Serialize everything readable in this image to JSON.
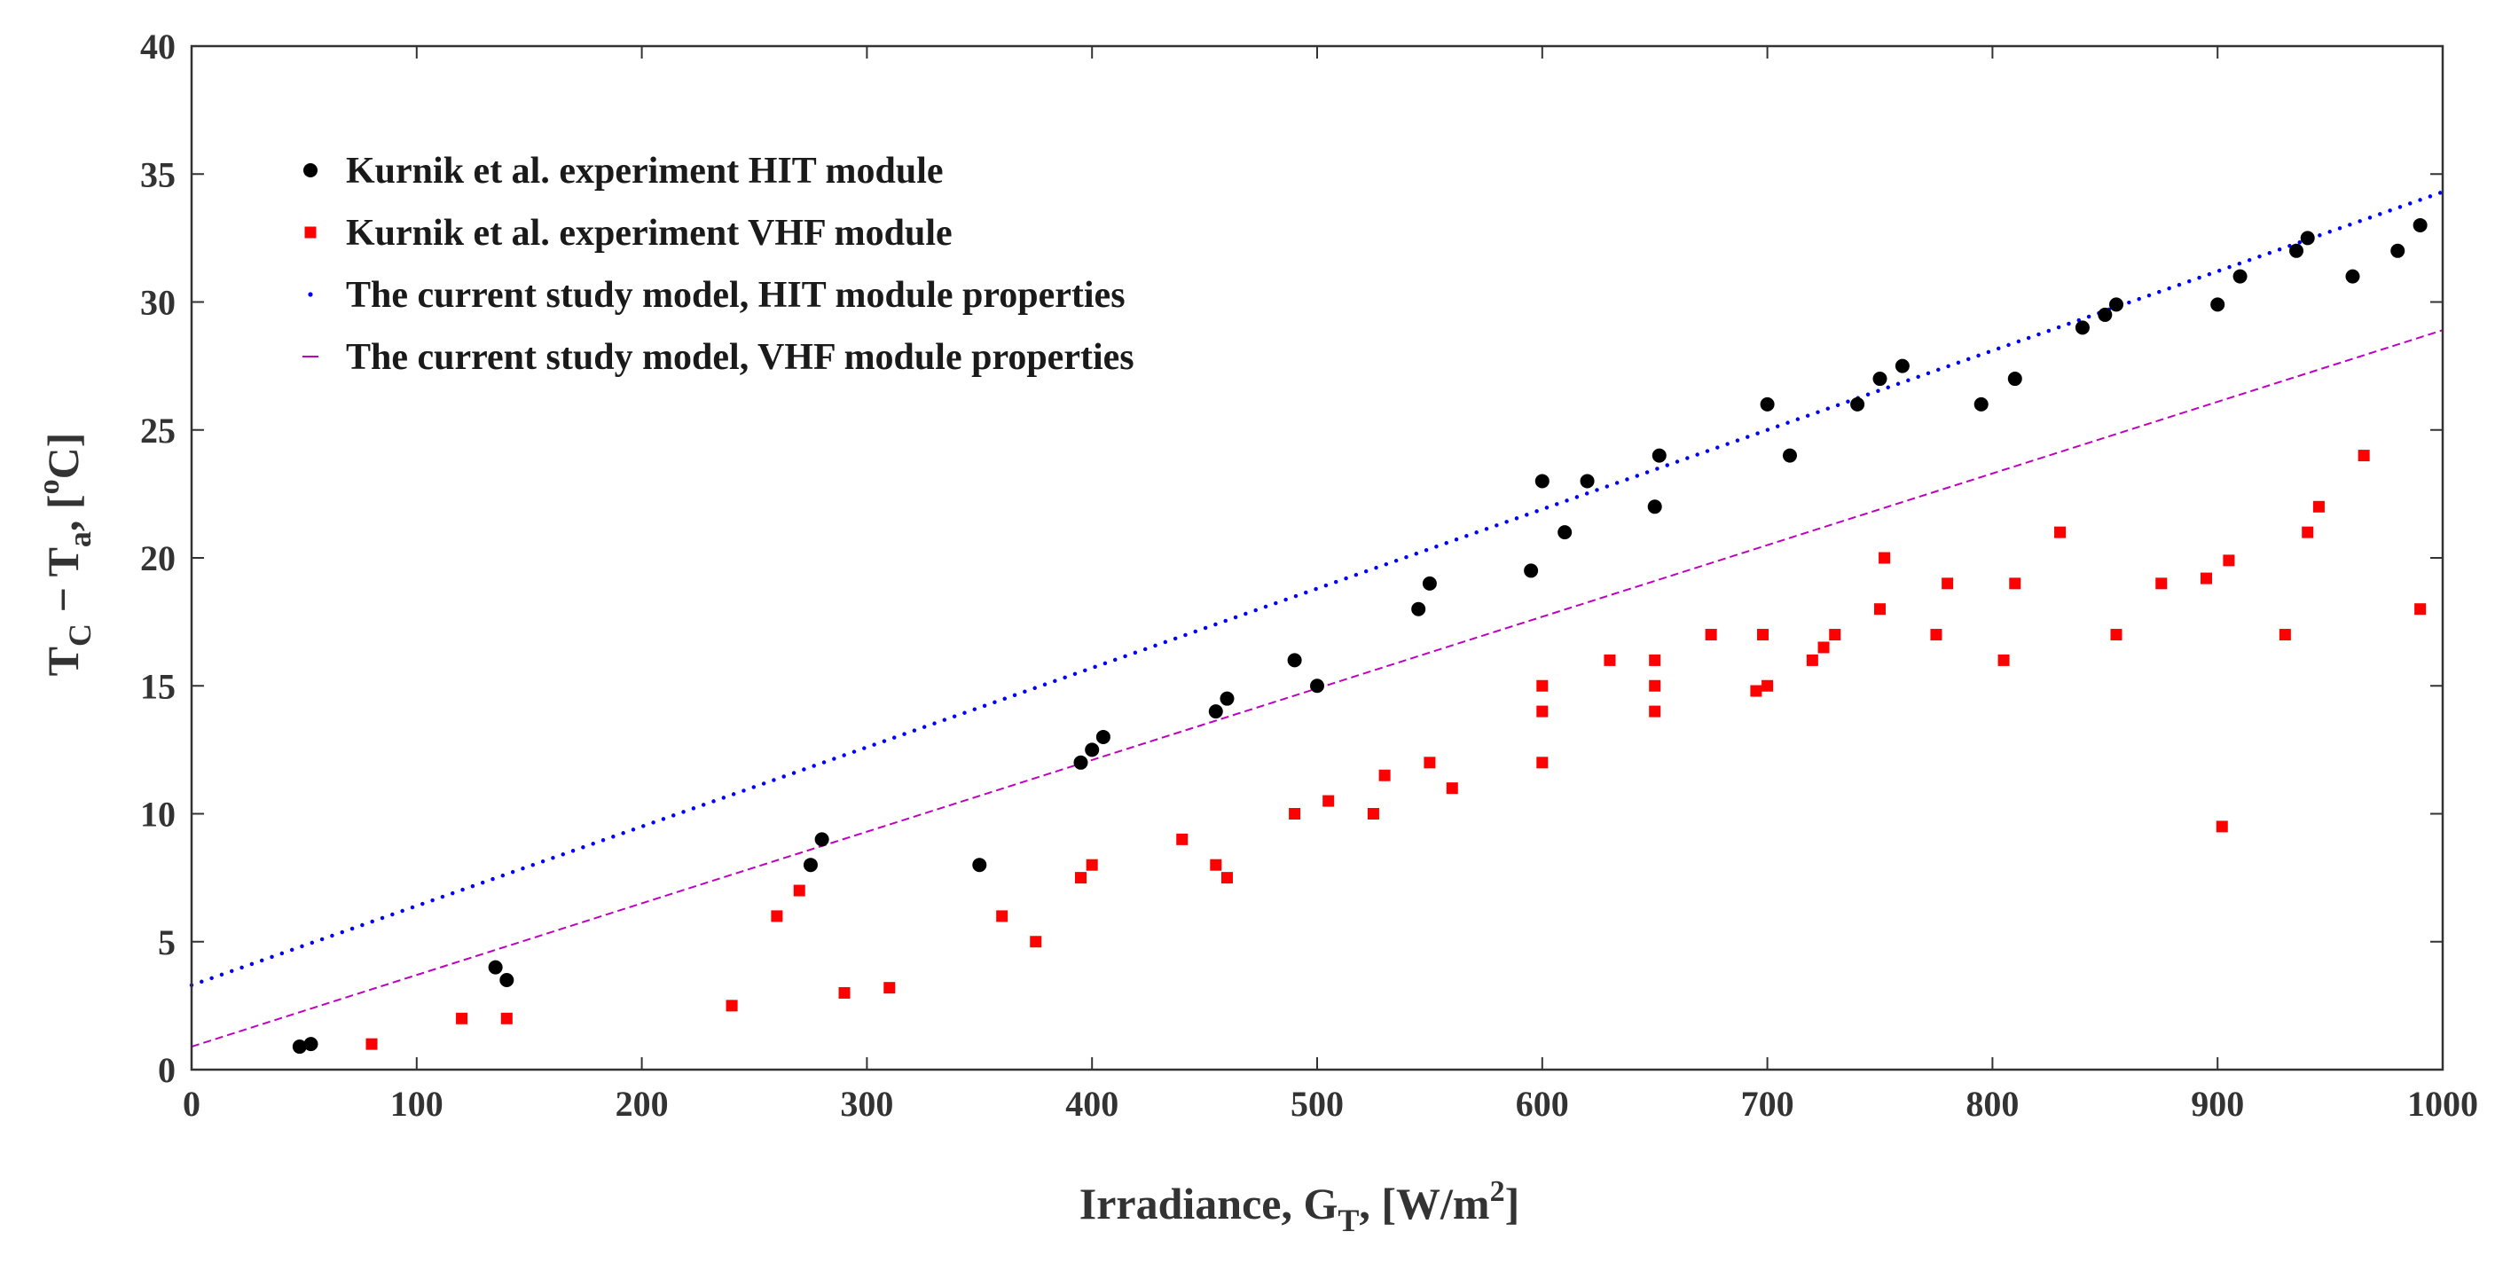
{
  "chart_data": {
    "type": "scatter",
    "xlabel": {
      "main": "Irradiance, G",
      "sub": "T",
      "tail": ", [W/m",
      "sup": "2",
      "close": "]"
    },
    "ylabel": {
      "p1": "T",
      "s1": "C",
      "p2": " − T",
      "s2": "a",
      "p3": ", [",
      "sup": "o",
      "p4": "C]"
    },
    "xlim": [
      0,
      1000
    ],
    "ylim": [
      0,
      40
    ],
    "xticks": [
      "0",
      "100",
      "200",
      "300",
      "400",
      "500",
      "600",
      "700",
      "800",
      "900",
      "1000"
    ],
    "yticks": [
      "0",
      "5",
      "10",
      "15",
      "20",
      "25",
      "30",
      "35",
      "40"
    ],
    "grid": false,
    "legend_position": "top-left",
    "series": [
      {
        "name": "Kurnik et al. experiment HIT module",
        "kind": "scatter",
        "marker": "circle",
        "color": "#000000",
        "points": [
          [
            48,
            0.9
          ],
          [
            53,
            1.0
          ],
          [
            135,
            4.0
          ],
          [
            140,
            3.5
          ],
          [
            275,
            8.0
          ],
          [
            280,
            9.0
          ],
          [
            350,
            8.0
          ],
          [
            395,
            12.0
          ],
          [
            400,
            12.5
          ],
          [
            405,
            13.0
          ],
          [
            455,
            14.0
          ],
          [
            460,
            14.5
          ],
          [
            490,
            16.0
          ],
          [
            500,
            15.0
          ],
          [
            545,
            18.0
          ],
          [
            550,
            19.0
          ],
          [
            595,
            19.5
          ],
          [
            600,
            23.0
          ],
          [
            610,
            21.0
          ],
          [
            620,
            23.0
          ],
          [
            650,
            22.0
          ],
          [
            652,
            24.0
          ],
          [
            700,
            26.0
          ],
          [
            710,
            24.0
          ],
          [
            740,
            26.0
          ],
          [
            750,
            27.0
          ],
          [
            760,
            27.5
          ],
          [
            795,
            26.0
          ],
          [
            810,
            27.0
          ],
          [
            840,
            29.0
          ],
          [
            850,
            29.5
          ],
          [
            855,
            29.9
          ],
          [
            900,
            29.9
          ],
          [
            910,
            31.0
          ],
          [
            935,
            32.0
          ],
          [
            940,
            32.5
          ],
          [
            960,
            31.0
          ],
          [
            980,
            32.0
          ],
          [
            990,
            33.0
          ]
        ]
      },
      {
        "name": "Kurnik et al. experiment VHF module",
        "kind": "scatter",
        "marker": "square",
        "color": "#ff0000",
        "points": [
          [
            80,
            1.0
          ],
          [
            120,
            2.0
          ],
          [
            140,
            2.0
          ],
          [
            240,
            2.5
          ],
          [
            260,
            6.0
          ],
          [
            270,
            7.0
          ],
          [
            290,
            3.0
          ],
          [
            310,
            3.2
          ],
          [
            360,
            6.0
          ],
          [
            375,
            5.0
          ],
          [
            395,
            7.5
          ],
          [
            400,
            8.0
          ],
          [
            440,
            9.0
          ],
          [
            455,
            8.0
          ],
          [
            460,
            7.5
          ],
          [
            490,
            10.0
          ],
          [
            505,
            10.5
          ],
          [
            525,
            10.0
          ],
          [
            530,
            11.5
          ],
          [
            550,
            12.0
          ],
          [
            560,
            11.0
          ],
          [
            600,
            12.0
          ],
          [
            600,
            14.0
          ],
          [
            600,
            15.0
          ],
          [
            630,
            16.0
          ],
          [
            650,
            14.0
          ],
          [
            650,
            15.0
          ],
          [
            650,
            16.0
          ],
          [
            675,
            17.0
          ],
          [
            695,
            14.8
          ],
          [
            698,
            17.0
          ],
          [
            700,
            15.0
          ],
          [
            720,
            16.0
          ],
          [
            725,
            16.5
          ],
          [
            730,
            17.0
          ],
          [
            750,
            18.0
          ],
          [
            752,
            20.0
          ],
          [
            775,
            17.0
          ],
          [
            780,
            19.0
          ],
          [
            805,
            16.0
          ],
          [
            810,
            19.0
          ],
          [
            830,
            21.0
          ],
          [
            855,
            17.0
          ],
          [
            875,
            19.0
          ],
          [
            895,
            19.2
          ],
          [
            902,
            9.5
          ],
          [
            905,
            19.9
          ],
          [
            930,
            17.0
          ],
          [
            940,
            21.0
          ],
          [
            945,
            22.0
          ],
          [
            965,
            24.0
          ],
          [
            990,
            18.0
          ]
        ]
      },
      {
        "name": "The current study model, HIT module properties",
        "kind": "line",
        "style": "dotted",
        "color": "#0000ff",
        "line": [
          [
            0,
            3.3
          ],
          [
            1000,
            34.3
          ]
        ]
      },
      {
        "name": "The current study model, VHF module properties",
        "kind": "line",
        "style": "dashed",
        "color": "#c000c0",
        "line": [
          [
            0,
            0.9
          ],
          [
            1000,
            28.9
          ]
        ]
      }
    ]
  }
}
